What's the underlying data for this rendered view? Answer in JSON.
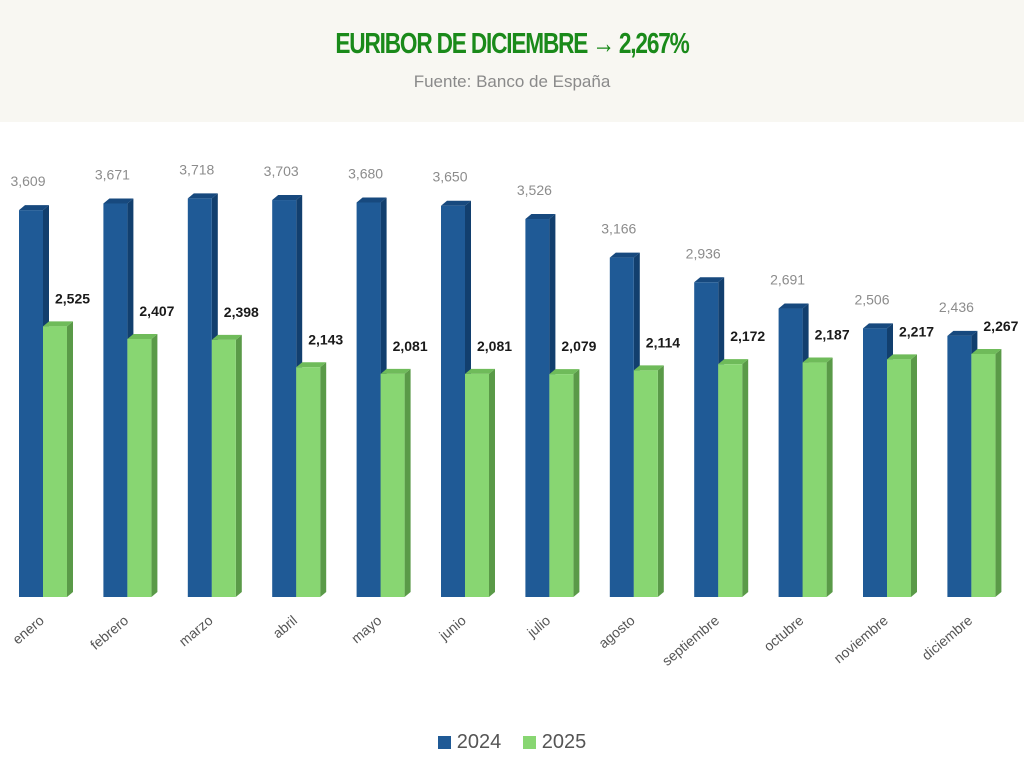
{
  "header": {
    "title": "EURIBOR DE DICIEMBRE → 2,267%",
    "subtitle": "Fuente: Banco de España"
  },
  "chart_data": {
    "type": "bar",
    "title": "EURIBOR DE DICIEMBRE → 2,267%",
    "subtitle": "Fuente: Banco de España",
    "categories": [
      "enero",
      "febrero",
      "marzo",
      "abril",
      "mayo",
      "junio",
      "julio",
      "agosto",
      "septiembre",
      "octubre",
      "noviembre",
      "diciembre"
    ],
    "series": [
      {
        "name": "2024",
        "color": "#1f5a96",
        "values": [
          3.609,
          3.671,
          3.718,
          3.703,
          3.68,
          3.65,
          3.526,
          3.166,
          2.936,
          2.691,
          2.506,
          2.436
        ],
        "labels": [
          "3,609",
          "3,671",
          "3,718",
          "3,703",
          "3,680",
          "3,650",
          "3,526",
          "3,166",
          "2,936",
          "2,691",
          "2,506",
          "2,436"
        ]
      },
      {
        "name": "2025",
        "color": "#88d672",
        "values": [
          2.525,
          2.407,
          2.398,
          2.143,
          2.081,
          2.081,
          2.079,
          2.114,
          2.172,
          2.187,
          2.217,
          2.267
        ],
        "labels": [
          "2,525",
          "2,407",
          "2,398",
          "2,143",
          "2,081",
          "2,081",
          "2,079",
          "2,114",
          "2,172",
          "2,187",
          "2,217",
          "2,267"
        ]
      }
    ],
    "xlabel": "",
    "ylabel": "",
    "ylim": [
      0,
      4
    ],
    "grid": false,
    "legend": "bottom"
  }
}
